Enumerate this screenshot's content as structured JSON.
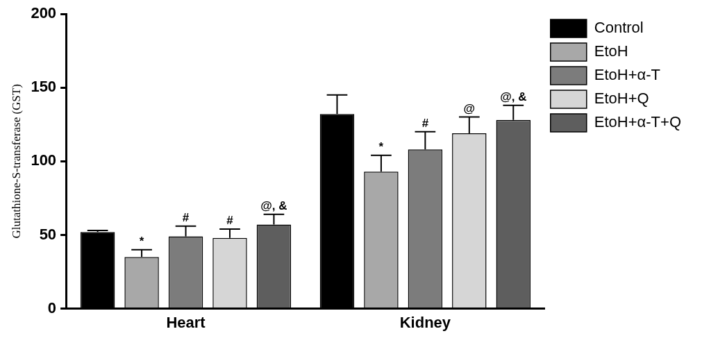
{
  "chart_data": {
    "type": "bar",
    "y_label": "Glutathione-S-transferase (GST)",
    "categories": [
      "Heart",
      "Kidney"
    ],
    "series": [
      {
        "name": "Control",
        "color": "#000000",
        "values": [
          52,
          132
        ],
        "errors": [
          1,
          13
        ],
        "annotations": [
          null,
          null
        ]
      },
      {
        "name": "EtoH",
        "color": "#a8a8a8",
        "values": [
          35,
          93
        ],
        "errors": [
          5,
          11
        ],
        "annotations": [
          "*",
          "*"
        ]
      },
      {
        "name": "EtoH+α-T",
        "color": "#7c7c7c",
        "values": [
          49,
          108
        ],
        "errors": [
          7,
          12
        ],
        "annotations": [
          "#",
          "#"
        ]
      },
      {
        "name": "EtoH+Q",
        "color": "#d6d6d6",
        "values": [
          48,
          119
        ],
        "errors": [
          6,
          11
        ],
        "annotations": [
          "#",
          "@"
        ]
      },
      {
        "name": "EtoH+α-T+Q",
        "color": "#5e5e5e",
        "values": [
          57,
          128
        ],
        "errors": [
          7,
          10
        ],
        "annotations": [
          "@, &",
          "@, &"
        ]
      }
    ],
    "ylim": [
      0,
      200
    ],
    "yticks": [
      0,
      50,
      100,
      150,
      200
    ],
    "grid": false,
    "legend": "right"
  }
}
